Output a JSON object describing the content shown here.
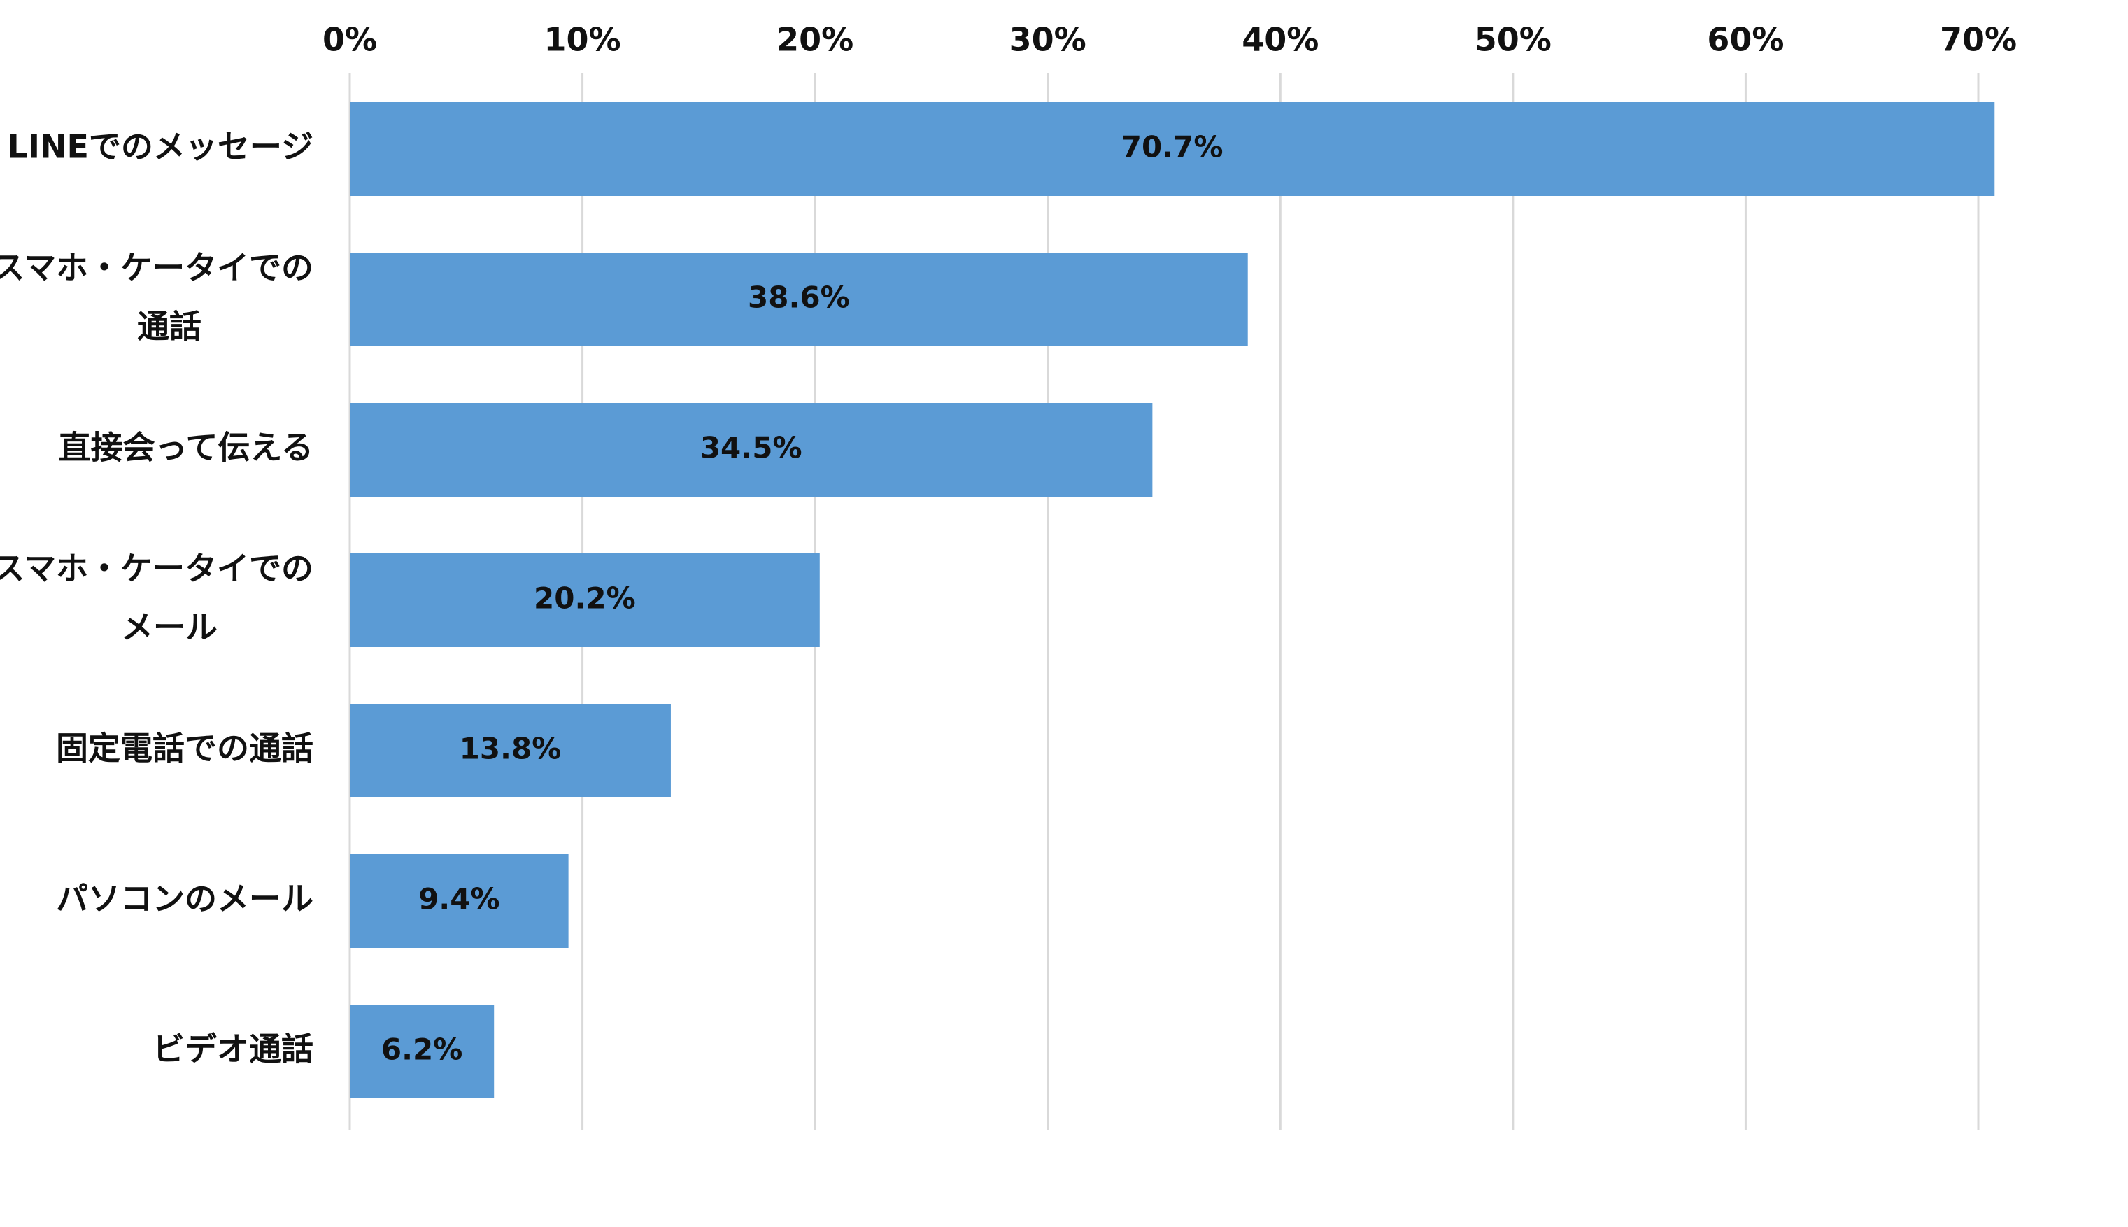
{
  "chart_data": {
    "type": "bar",
    "orientation": "horizontal",
    "title": "",
    "xlabel": "",
    "ylabel": "",
    "axis_position": "top",
    "xlim": [
      0,
      70
    ],
    "x_ticks": [
      0,
      10,
      20,
      30,
      40,
      50,
      60,
      70
    ],
    "x_tick_labels": [
      "0%",
      "10%",
      "20%",
      "30%",
      "40%",
      "50%",
      "60%",
      "70%"
    ],
    "grid": true,
    "legend": "none",
    "bar_color": "#5b9bd5",
    "categories": [
      [
        "LINEでのメッセージ"
      ],
      [
        "スマホ・ケータイでの",
        "通話"
      ],
      [
        "直接会って伝える"
      ],
      [
        "スマホ・ケータイでの",
        "メール"
      ],
      [
        "固定電話での通話"
      ],
      [
        "パソコンのメール"
      ],
      [
        "ビデオ通話"
      ]
    ],
    "values": [
      70.7,
      38.6,
      34.5,
      20.2,
      13.8,
      9.4,
      6.2
    ],
    "data_labels": [
      "70.7%",
      "38.6%",
      "34.5%",
      "20.2%",
      "13.8%",
      "9.4%",
      "6.2%"
    ]
  }
}
